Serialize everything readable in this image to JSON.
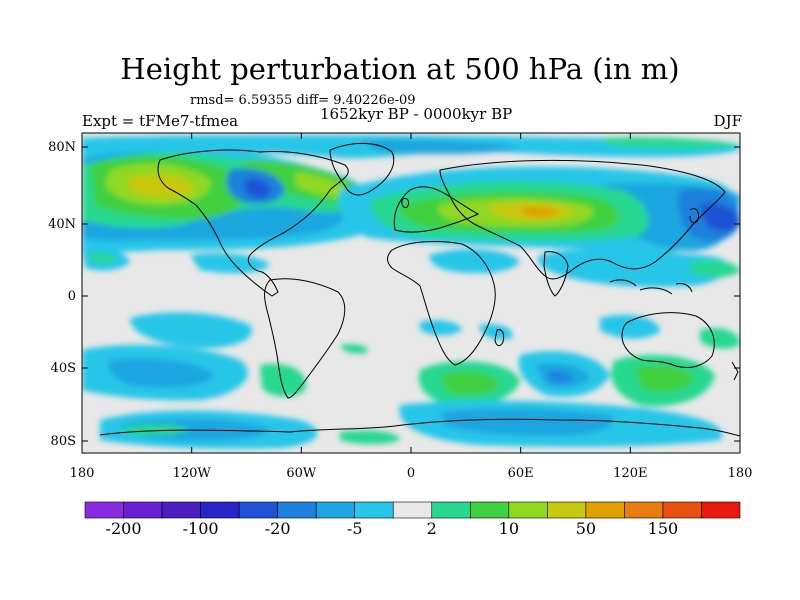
{
  "title": "Height perturbation at 500 hPa (in m)",
  "stats": "rmsd= 6.59355 diff= 9.40226e-09",
  "left_label": "Expt = tFMe7-tfmea",
  "center_label": "1652kyr BP - 0000kyr BP",
  "right_label": "DJF",
  "x_ticks": [
    "180",
    "120W",
    "60W",
    "0",
    "60E",
    "120E",
    "180"
  ],
  "y_ticks": [
    "80N",
    "40N",
    "0",
    "40S",
    "80S"
  ],
  "colorbar": {
    "colors": [
      "#8a2be2",
      "#6a1fd0",
      "#4b1ec0",
      "#2a24c8",
      "#1f52d4",
      "#1e80dc",
      "#1fa6e0",
      "#28c6e8",
      "#e8e8e8",
      "#28d890",
      "#40d040",
      "#90d820",
      "#c8c810",
      "#e0a000",
      "#e87c10",
      "#e85010",
      "#e81a10"
    ],
    "labels": [
      "-200",
      "-100",
      "-20",
      "-5",
      "2",
      "10",
      "50",
      "150"
    ]
  },
  "colors": {
    "neutral": "#e8e8e8",
    "c1": "#28c6e8",
    "c2": "#1fa6e0",
    "c3": "#1e80dc",
    "c4": "#1f52d4",
    "p1": "#28d890",
    "p2": "#40d040",
    "p3": "#90d820",
    "p4": "#c8c810",
    "p5": "#e0a000"
  }
}
